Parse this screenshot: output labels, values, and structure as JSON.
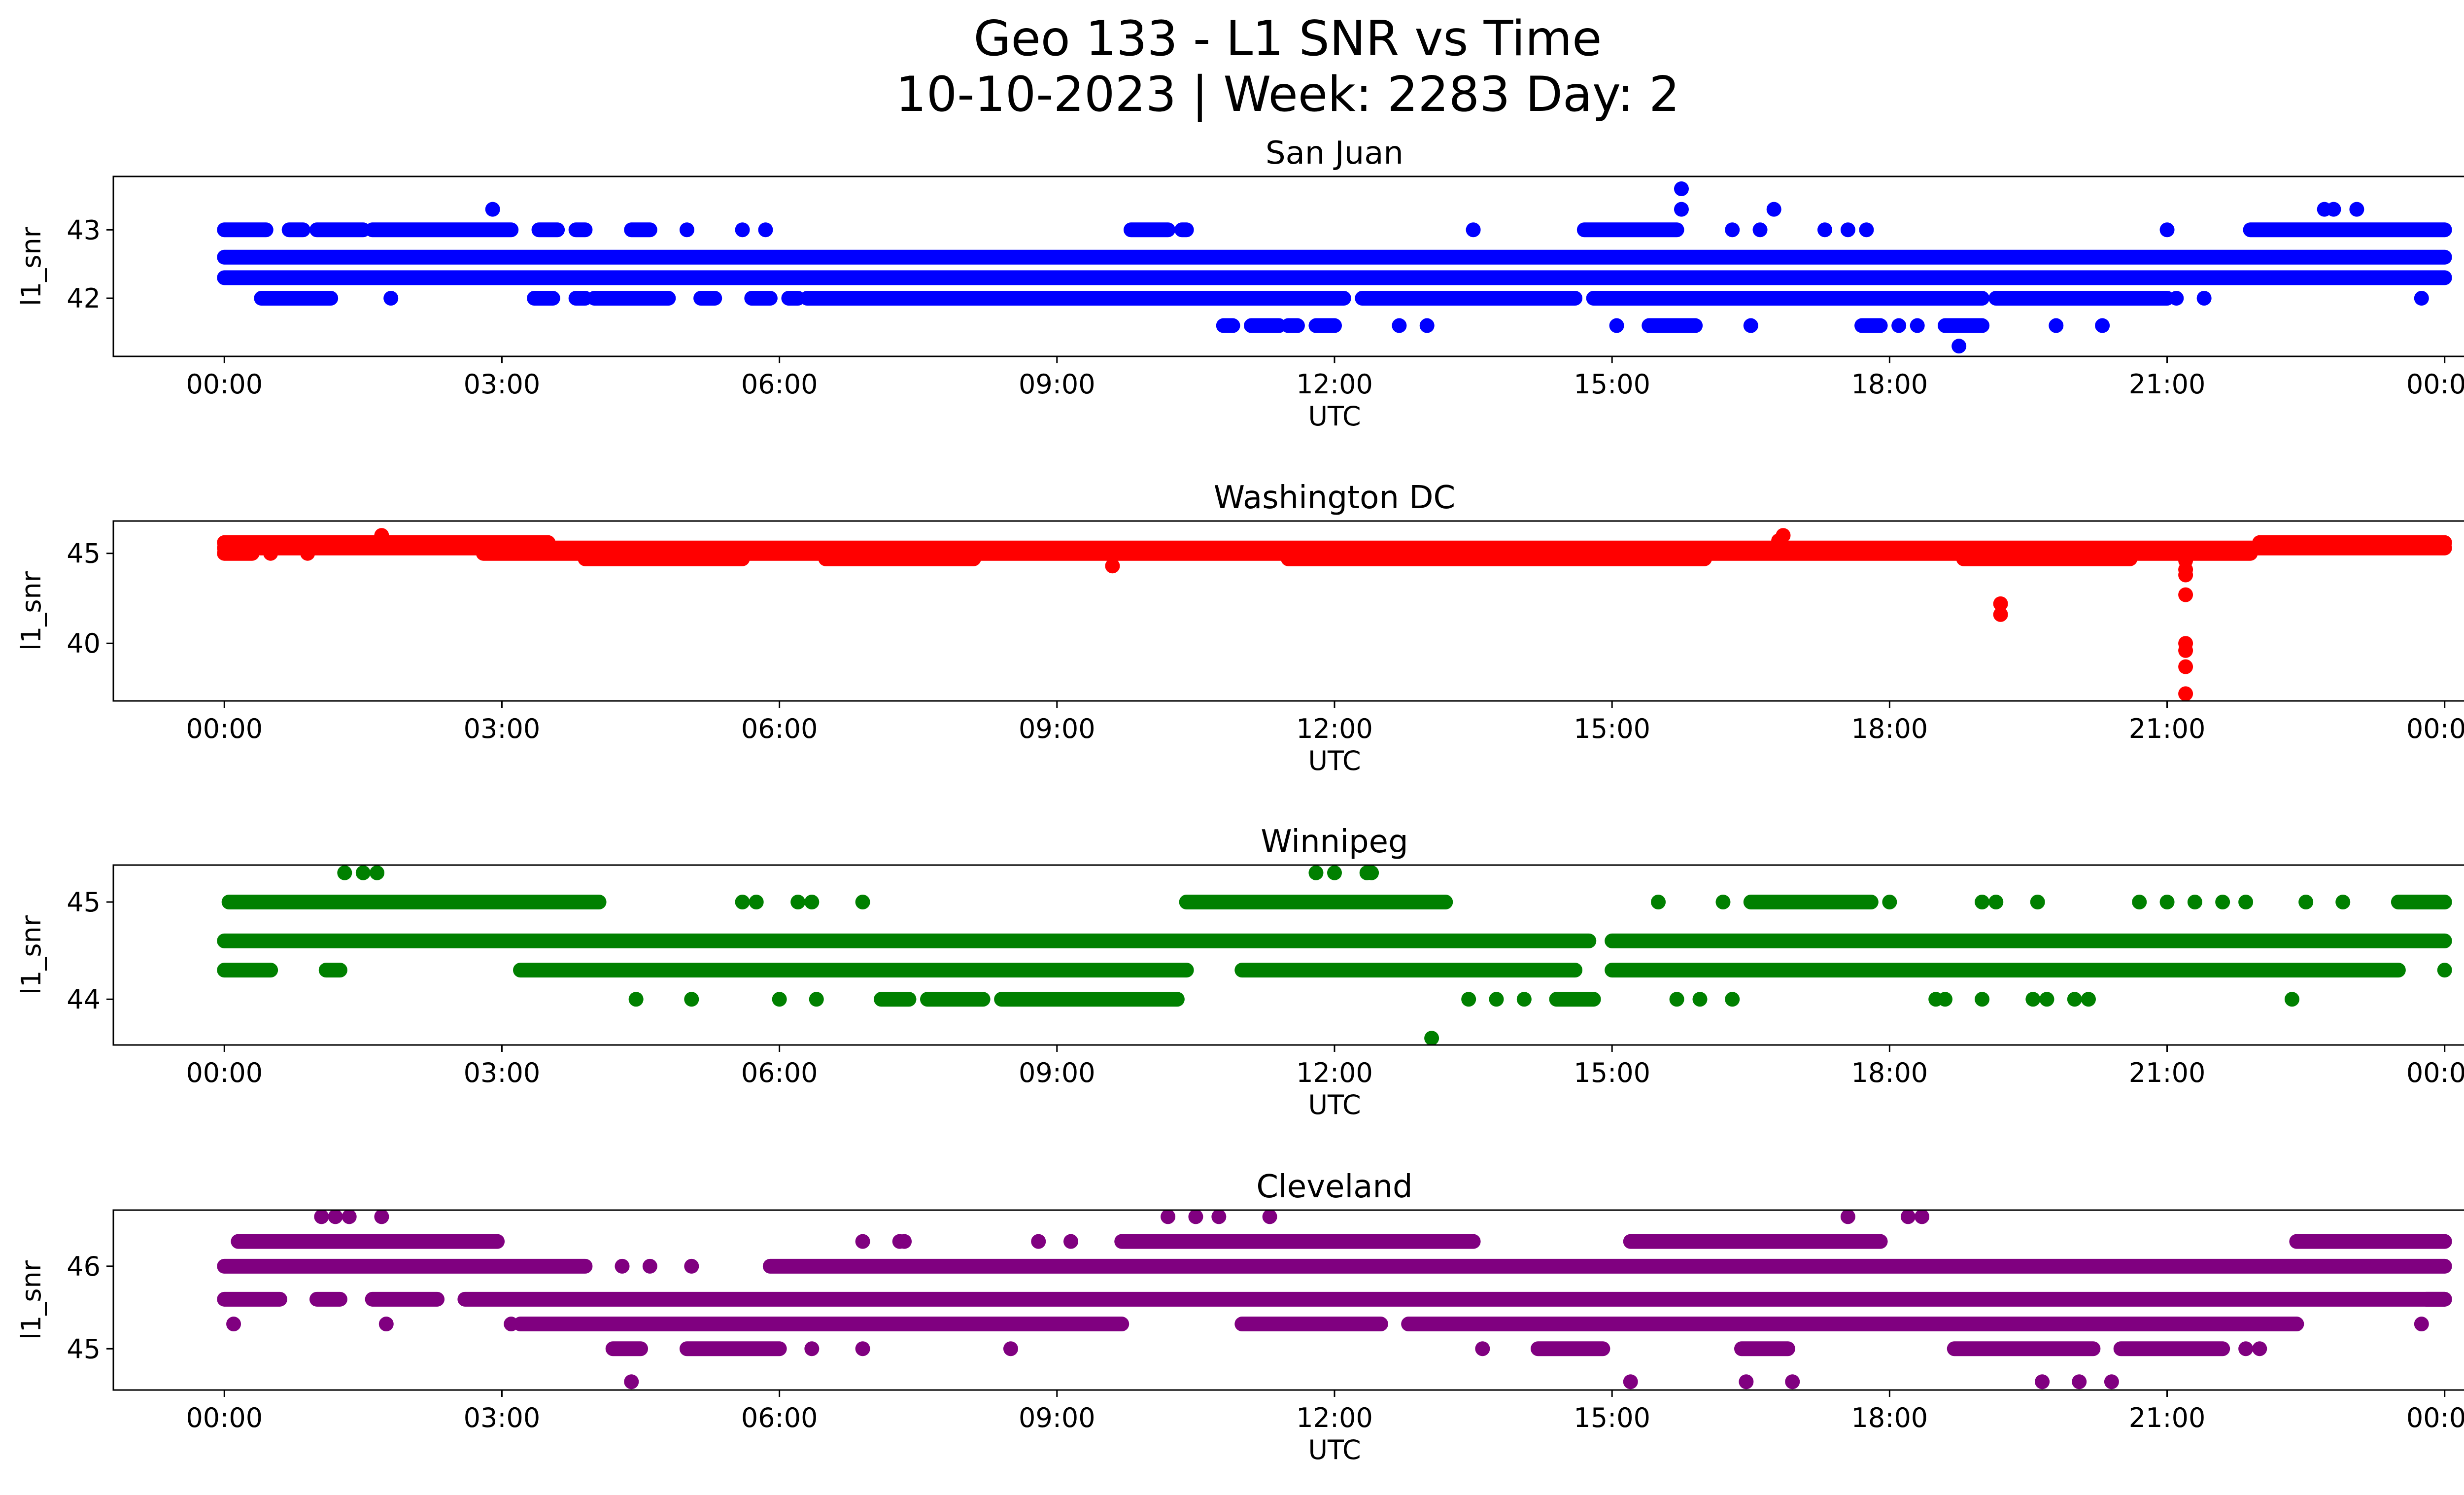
{
  "title_line1": "Geo 133 - L1 SNR vs Time",
  "title_line2": "10-10-2023 | Week: 2283 Day: 2",
  "chart_data": [
    {
      "type": "scatter",
      "title": "San Juan",
      "color": "#0000ff",
      "xlabel": "UTC",
      "ylabel": "l1_snr",
      "xlim_hours": [
        -1.2,
        25.2
      ],
      "x_tick_labels": [
        "00:00",
        "03:00",
        "06:00",
        "09:00",
        "12:00",
        "15:00",
        "18:00",
        "21:00",
        "00:00"
      ],
      "ylim": [
        41.15,
        43.78
      ],
      "y_ticks": [
        42,
        43
      ],
      "bands": [
        {
          "y": 42.6,
          "segments": [
            [
              0,
              24
            ]
          ]
        },
        {
          "y": 42.3,
          "segments": [
            [
              0,
              24
            ]
          ]
        },
        {
          "y": 43.0,
          "segments": [
            [
              0,
              0.45
            ],
            [
              0.7,
              0.85
            ],
            [
              1.0,
              1.5
            ],
            [
              1.6,
              3.1
            ],
            [
              3.4,
              3.6
            ],
            [
              3.8,
              3.9
            ],
            [
              4.4,
              4.6
            ],
            [
              9.8,
              10.2
            ],
            [
              10.35,
              10.4
            ],
            [
              14.7,
              15.7
            ],
            [
              21.9,
              24
            ]
          ]
        },
        {
          "y": 42.0,
          "segments": [
            [
              0.4,
              1.15
            ],
            [
              3.35,
              3.55
            ],
            [
              3.8,
              3.9
            ],
            [
              4.0,
              4.8
            ],
            [
              5.15,
              5.3
            ],
            [
              5.7,
              5.9
            ],
            [
              6.1,
              6.2
            ],
            [
              6.3,
              12.1
            ],
            [
              12.3,
              14.6
            ],
            [
              14.8,
              19.0
            ],
            [
              19.15,
              21.0
            ]
          ]
        },
        {
          "y": 41.6,
          "segments": [
            [
              10.8,
              10.9
            ],
            [
              11.1,
              11.4
            ],
            [
              11.5,
              11.6
            ],
            [
              11.8,
              12.0
            ],
            [
              15.4,
              15.9
            ],
            [
              17.7,
              17.9
            ],
            [
              18.6,
              19.0
            ]
          ]
        }
      ],
      "points": [
        [
          2.9,
          43.3
        ],
        [
          15.75,
          43.6
        ],
        [
          15.75,
          43.3
        ],
        [
          16.75,
          43.3
        ],
        [
          22.7,
          43.3
        ],
        [
          22.8,
          43.3
        ],
        [
          23.05,
          43.3
        ],
        [
          1.8,
          42.0
        ],
        [
          7.6,
          42.0
        ],
        [
          23.75,
          42.0
        ],
        [
          21.1,
          42.0
        ],
        [
          21.4,
          42.0
        ],
        [
          12.7,
          41.6
        ],
        [
          13.0,
          41.6
        ],
        [
          15.05,
          41.6
        ],
        [
          16.5,
          41.6
        ],
        [
          18.1,
          41.6
        ],
        [
          18.3,
          41.6
        ],
        [
          19.8,
          41.6
        ],
        [
          20.3,
          41.6
        ],
        [
          18.75,
          41.3
        ],
        [
          13.5,
          43.0
        ],
        [
          16.3,
          43.0
        ],
        [
          16.6,
          43.0
        ],
        [
          17.3,
          43.0
        ],
        [
          17.55,
          43.0
        ],
        [
          17.75,
          43.0
        ],
        [
          21.0,
          43.0
        ],
        [
          5.0,
          43.0
        ],
        [
          5.6,
          43.0
        ],
        [
          5.85,
          43.0
        ]
      ]
    },
    {
      "type": "scatter",
      "title": "Washington DC",
      "color": "#ff0000",
      "xlabel": "UTC",
      "ylabel": "l1_snr",
      "xlim_hours": [
        -1.2,
        25.2
      ],
      "x_tick_labels": [
        "00:00",
        "03:00",
        "06:00",
        "09:00",
        "12:00",
        "15:00",
        "18:00",
        "21:00",
        "00:00"
      ],
      "ylim": [
        36.8,
        46.8
      ],
      "y_ticks": [
        40,
        45
      ],
      "bands": [
        {
          "y": 45.6,
          "segments": [
            [
              0,
              3.5
            ],
            [
              22.0,
              24
            ]
          ]
        },
        {
          "y": 45.3,
          "segments": [
            [
              0,
              24
            ]
          ]
        },
        {
          "y": 45.0,
          "segments": [
            [
              0,
              0.3
            ],
            [
              2.8,
              21.9
            ]
          ]
        },
        {
          "y": 44.7,
          "segments": [
            [
              3.9,
              5.6
            ],
            [
              6.5,
              8.1
            ],
            [
              11.5,
              16.0
            ],
            [
              18.8,
              20.6
            ]
          ]
        }
      ],
      "points": [
        [
          1.7,
          46.0
        ],
        [
          16.85,
          46.0
        ],
        [
          16.8,
          45.7
        ],
        [
          9.6,
          44.3
        ],
        [
          19.2,
          42.2
        ],
        [
          19.2,
          41.6
        ],
        [
          21.2,
          44.6
        ],
        [
          21.2,
          44.1
        ],
        [
          21.2,
          43.8
        ],
        [
          21.2,
          42.7
        ],
        [
          21.2,
          40.0
        ],
        [
          21.2,
          39.6
        ],
        [
          21.2,
          38.7
        ],
        [
          21.2,
          37.2
        ],
        [
          0.5,
          45.0
        ],
        [
          0.9,
          45.0
        ]
      ]
    },
    {
      "type": "scatter",
      "title": "Winnipeg",
      "color": "#008000",
      "xlabel": "UTC",
      "ylabel": "l1_snr",
      "xlim_hours": [
        -1.2,
        25.2
      ],
      "x_tick_labels": [
        "00:00",
        "03:00",
        "06:00",
        "09:00",
        "12:00",
        "15:00",
        "18:00",
        "21:00",
        "00:00"
      ],
      "ylim": [
        43.53,
        45.38
      ],
      "y_ticks": [
        44,
        45
      ],
      "bands": [
        {
          "y": 44.6,
          "segments": [
            [
              0,
              14.75
            ],
            [
              15.0,
              24
            ]
          ]
        },
        {
          "y": 45.0,
          "segments": [
            [
              0.05,
              4.05
            ],
            [
              10.4,
              13.2
            ],
            [
              16.5,
              17.8
            ],
            [
              23.5,
              24
            ]
          ]
        },
        {
          "y": 44.3,
          "segments": [
            [
              0,
              0.5
            ],
            [
              1.1,
              1.25
            ],
            [
              3.2,
              10.4
            ],
            [
              11.0,
              14.6
            ],
            [
              15.0,
              23.5
            ]
          ]
        },
        {
          "y": 44.0,
          "segments": [
            [
              7.1,
              7.4
            ],
            [
              7.6,
              8.2
            ],
            [
              8.4,
              10.3
            ],
            [
              14.4,
              14.8
            ]
          ]
        }
      ],
      "points": [
        [
          1.3,
          45.3
        ],
        [
          1.5,
          45.3
        ],
        [
          1.65,
          45.3
        ],
        [
          11.8,
          45.3
        ],
        [
          12.0,
          45.3
        ],
        [
          12.35,
          45.3
        ],
        [
          12.4,
          45.3
        ],
        [
          5.6,
          45.0
        ],
        [
          5.75,
          45.0
        ],
        [
          6.2,
          45.0
        ],
        [
          6.35,
          45.0
        ],
        [
          6.9,
          45.0
        ],
        [
          15.5,
          45.0
        ],
        [
          16.2,
          45.0
        ],
        [
          18.0,
          45.0
        ],
        [
          19.0,
          45.0
        ],
        [
          19.15,
          45.0
        ],
        [
          19.6,
          45.0
        ],
        [
          20.7,
          45.0
        ],
        [
          21.0,
          45.0
        ],
        [
          21.3,
          45.0
        ],
        [
          21.6,
          45.0
        ],
        [
          21.85,
          45.0
        ],
        [
          22.5,
          45.0
        ],
        [
          22.9,
          45.0
        ],
        [
          4.45,
          44.0
        ],
        [
          5.05,
          44.0
        ],
        [
          6.0,
          44.0
        ],
        [
          6.4,
          44.0
        ],
        [
          13.45,
          44.0
        ],
        [
          13.75,
          44.0
        ],
        [
          14.05,
          44.0
        ],
        [
          15.7,
          44.0
        ],
        [
          15.95,
          44.0
        ],
        [
          16.3,
          44.0
        ],
        [
          18.5,
          44.0
        ],
        [
          18.6,
          44.0
        ],
        [
          19.0,
          44.0
        ],
        [
          19.55,
          44.0
        ],
        [
          19.7,
          44.0
        ],
        [
          20.0,
          44.0
        ],
        [
          20.15,
          44.0
        ],
        [
          22.35,
          44.0
        ],
        [
          13.05,
          43.6
        ],
        [
          24.0,
          44.3
        ]
      ]
    },
    {
      "type": "scatter",
      "title": "Cleveland",
      "color": "#800080",
      "xlabel": "UTC",
      "ylabel": "l1_snr",
      "xlim_hours": [
        -1.2,
        25.2
      ],
      "x_tick_labels": [
        "00:00",
        "03:00",
        "06:00",
        "09:00",
        "12:00",
        "15:00",
        "18:00",
        "21:00",
        "00:00"
      ],
      "ylim": [
        44.5,
        46.68
      ],
      "y_ticks": [
        45,
        46
      ],
      "bands": [
        {
          "y": 46.0,
          "segments": [
            [
              0,
              3.9
            ],
            [
              5.9,
              24
            ]
          ]
        },
        {
          "y": 45.6,
          "segments": [
            [
              0,
              0.6
            ],
            [
              1.0,
              1.25
            ],
            [
              1.6,
              2.3
            ],
            [
              2.6,
              24
            ],
            [
              23.8,
              24
            ]
          ]
        },
        {
          "y": 46.3,
          "segments": [
            [
              0.15,
              2.95
            ],
            [
              9.7,
              13.5
            ],
            [
              15.2,
              17.9
            ],
            [
              22.4,
              24
            ]
          ]
        },
        {
          "y": 45.3,
          "segments": [
            [
              3.2,
              9.7
            ],
            [
              11.0,
              12.5
            ],
            [
              12.8,
              22.4
            ]
          ]
        },
        {
          "y": 45.0,
          "segments": [
            [
              4.2,
              4.5
            ],
            [
              5.0,
              6.0
            ],
            [
              14.2,
              14.9
            ],
            [
              16.4,
              16.9
            ],
            [
              18.7,
              20.2
            ],
            [
              20.5,
              21.6
            ]
          ]
        }
      ],
      "points": [
        [
          1.05,
          46.6
        ],
        [
          1.2,
          46.6
        ],
        [
          1.35,
          46.6
        ],
        [
          1.7,
          46.6
        ],
        [
          10.2,
          46.6
        ],
        [
          10.5,
          46.6
        ],
        [
          10.75,
          46.6
        ],
        [
          11.3,
          46.6
        ],
        [
          17.55,
          46.6
        ],
        [
          18.2,
          46.6
        ],
        [
          18.35,
          46.6
        ],
        [
          0.1,
          45.3
        ],
        [
          1.75,
          45.3
        ],
        [
          3.1,
          45.3
        ],
        [
          23.75,
          45.3
        ],
        [
          4.3,
          46.0
        ],
        [
          4.6,
          46.0
        ],
        [
          5.05,
          46.0
        ],
        [
          6.9,
          46.3
        ],
        [
          7.3,
          46.3
        ],
        [
          7.35,
          46.3
        ],
        [
          8.8,
          46.3
        ],
        [
          9.15,
          46.3
        ],
        [
          4.4,
          44.6
        ],
        [
          15.2,
          44.6
        ],
        [
          16.45,
          44.6
        ],
        [
          16.95,
          44.6
        ],
        [
          19.65,
          44.6
        ],
        [
          20.05,
          44.6
        ],
        [
          20.4,
          44.6
        ],
        [
          6.35,
          45.0
        ],
        [
          6.9,
          45.0
        ],
        [
          8.5,
          45.0
        ],
        [
          13.6,
          45.0
        ],
        [
          21.85,
          45.0
        ],
        [
          22.0,
          45.0
        ]
      ]
    }
  ]
}
